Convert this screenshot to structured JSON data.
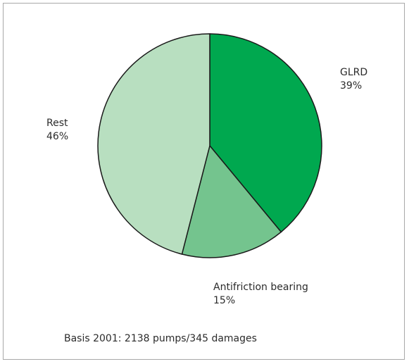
{
  "chart_data": {
    "type": "pie",
    "start_angle_deg": 0,
    "direction": "clockwise",
    "slices": [
      {
        "label": "GLRD",
        "value": 39,
        "value_label": "39%",
        "color": "#00a84f"
      },
      {
        "label": "Antifriction bearing",
        "value": 15,
        "value_label": "15%",
        "color": "#74c48e"
      },
      {
        "label": "Rest",
        "value": 46,
        "value_label": "46%",
        "color": "#b8dfc0"
      }
    ],
    "stroke_color": "#1a1a1a",
    "footnote": "Basis 2001: 2138 pumps/345 damages"
  }
}
